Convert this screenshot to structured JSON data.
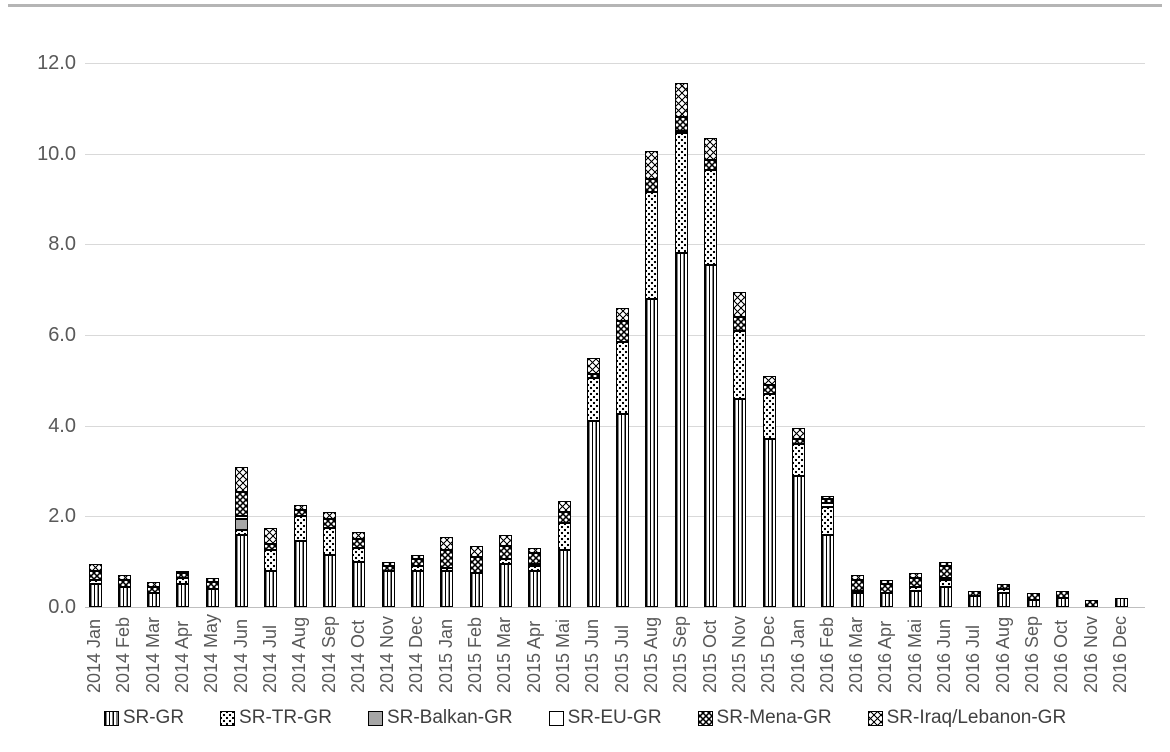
{
  "figure": {
    "background": "#ffffff",
    "top_border_color": "#b5b5b5"
  },
  "chart_data": {
    "type": "bar",
    "stacked": true,
    "title": "",
    "xlabel": "",
    "ylabel": "",
    "ylim": [
      0,
      12
    ],
    "grid": "horizontal-only",
    "legend_position": "bottom",
    "ytick_labels": [
      "12.0",
      "10.0",
      "8.0",
      "6.0",
      "4.0",
      "2.0",
      "0.0"
    ],
    "categories": [
      "2014 Jan",
      "2014 Feb",
      "2014 Mar",
      "2014 Apr",
      "2014 May",
      "2014 Jun",
      "2014 Jul",
      "2014 Aug",
      "2014 Sep",
      "2014 Oct",
      "2014 Nov",
      "2014 Dec",
      "2015 Jan",
      "2015 Feb",
      "2015 Mar",
      "2015 Apr",
      "2015 Mai",
      "2015 Jun",
      "2015 Jul",
      "2015 Aug",
      "2015 Sep",
      "2015 Oct",
      "2015 Nov",
      "2015 Dec",
      "2016 Jan",
      "2016 Feb",
      "2016 Mar",
      "2016 Apr",
      "2016 Mai",
      "2016 Jun",
      "2016 Jul",
      "2016 Aug",
      "2016 Sep",
      "2016 Oct",
      "2016 Nov",
      "2016 Dec"
    ],
    "series": [
      {
        "name": "SR-GR",
        "pattern": "vertical-stripes",
        "values": [
          0.5,
          0.45,
          0.3,
          0.5,
          0.4,
          1.6,
          0.8,
          1.45,
          1.15,
          1.0,
          0.8,
          0.8,
          0.8,
          0.75,
          0.95,
          0.8,
          1.25,
          4.1,
          4.25,
          6.8,
          7.8,
          7.55,
          4.6,
          3.7,
          2.9,
          1.6,
          0.3,
          0.3,
          0.35,
          0.45,
          0.25,
          0.3,
          0.15,
          0.2,
          0.0,
          0.2
        ]
      },
      {
        "name": "SR-TR-GR",
        "pattern": "black-dots-on-white",
        "values": [
          0.1,
          0.0,
          0.0,
          0.15,
          0.0,
          0.1,
          0.45,
          0.55,
          0.6,
          0.3,
          0.0,
          0.1,
          0.05,
          0.0,
          0.1,
          0.1,
          0.6,
          0.95,
          1.6,
          2.35,
          2.65,
          2.1,
          1.5,
          1.0,
          0.7,
          0.6,
          0.05,
          0.0,
          0.1,
          0.15,
          0.0,
          0.1,
          0.0,
          0.0,
          0.0,
          0.0
        ]
      },
      {
        "name": "SR-Balkan-GR",
        "pattern": "solid-gray",
        "values": [
          0.0,
          0.0,
          0.0,
          0.0,
          0.0,
          0.25,
          0.0,
          0.0,
          0.0,
          0.0,
          0.0,
          0.0,
          0.0,
          0.0,
          0.0,
          0.0,
          0.0,
          0.0,
          0.0,
          0.0,
          0.05,
          0.0,
          0.0,
          0.0,
          0.0,
          0.0,
          0.0,
          0.0,
          0.0,
          0.0,
          0.0,
          0.0,
          0.0,
          0.0,
          0.0,
          0.0
        ]
      },
      {
        "name": "SR-EU-GR",
        "pattern": "solid-white",
        "values": [
          0.0,
          0.0,
          0.0,
          0.0,
          0.0,
          0.05,
          0.0,
          0.0,
          0.0,
          0.0,
          0.0,
          0.0,
          0.0,
          0.0,
          0.0,
          0.05,
          0.0,
          0.0,
          0.0,
          0.0,
          0.0,
          0.0,
          0.0,
          0.0,
          0.0,
          0.1,
          0.0,
          0.0,
          0.0,
          0.05,
          0.0,
          0.0,
          0.0,
          0.0,
          0.0,
          0.0
        ]
      },
      {
        "name": "SR-Mena-GR",
        "pattern": "white-dots-on-black",
        "values": [
          0.2,
          0.15,
          0.15,
          0.1,
          0.15,
          0.55,
          0.15,
          0.15,
          0.2,
          0.2,
          0.1,
          0.15,
          0.4,
          0.35,
          0.3,
          0.25,
          0.25,
          0.1,
          0.45,
          0.3,
          0.3,
          0.2,
          0.3,
          0.2,
          0.1,
          0.08,
          0.25,
          0.2,
          0.2,
          0.25,
          0.1,
          0.1,
          0.15,
          0.15,
          0.15,
          0.0
        ]
      },
      {
        "name": "SR-Iraq/Lebanon-GR",
        "pattern": "diagonal-crosshatch",
        "values": [
          0.15,
          0.1,
          0.1,
          0.05,
          0.1,
          0.55,
          0.35,
          0.1,
          0.15,
          0.15,
          0.1,
          0.1,
          0.3,
          0.25,
          0.25,
          0.1,
          0.25,
          0.35,
          0.3,
          0.6,
          0.75,
          0.5,
          0.55,
          0.2,
          0.25,
          0.07,
          0.1,
          0.1,
          0.1,
          0.1,
          0.0,
          0.0,
          0.0,
          0.0,
          0.0,
          0.0
        ]
      }
    ]
  },
  "colors": {
    "bar_outline": "#000000",
    "gridline": "#d9d9d9",
    "axis_line": "#bfbfbf",
    "tick_label": "#595959",
    "legend_label": "#404040",
    "balkan_gray": "#a6a6a6"
  }
}
